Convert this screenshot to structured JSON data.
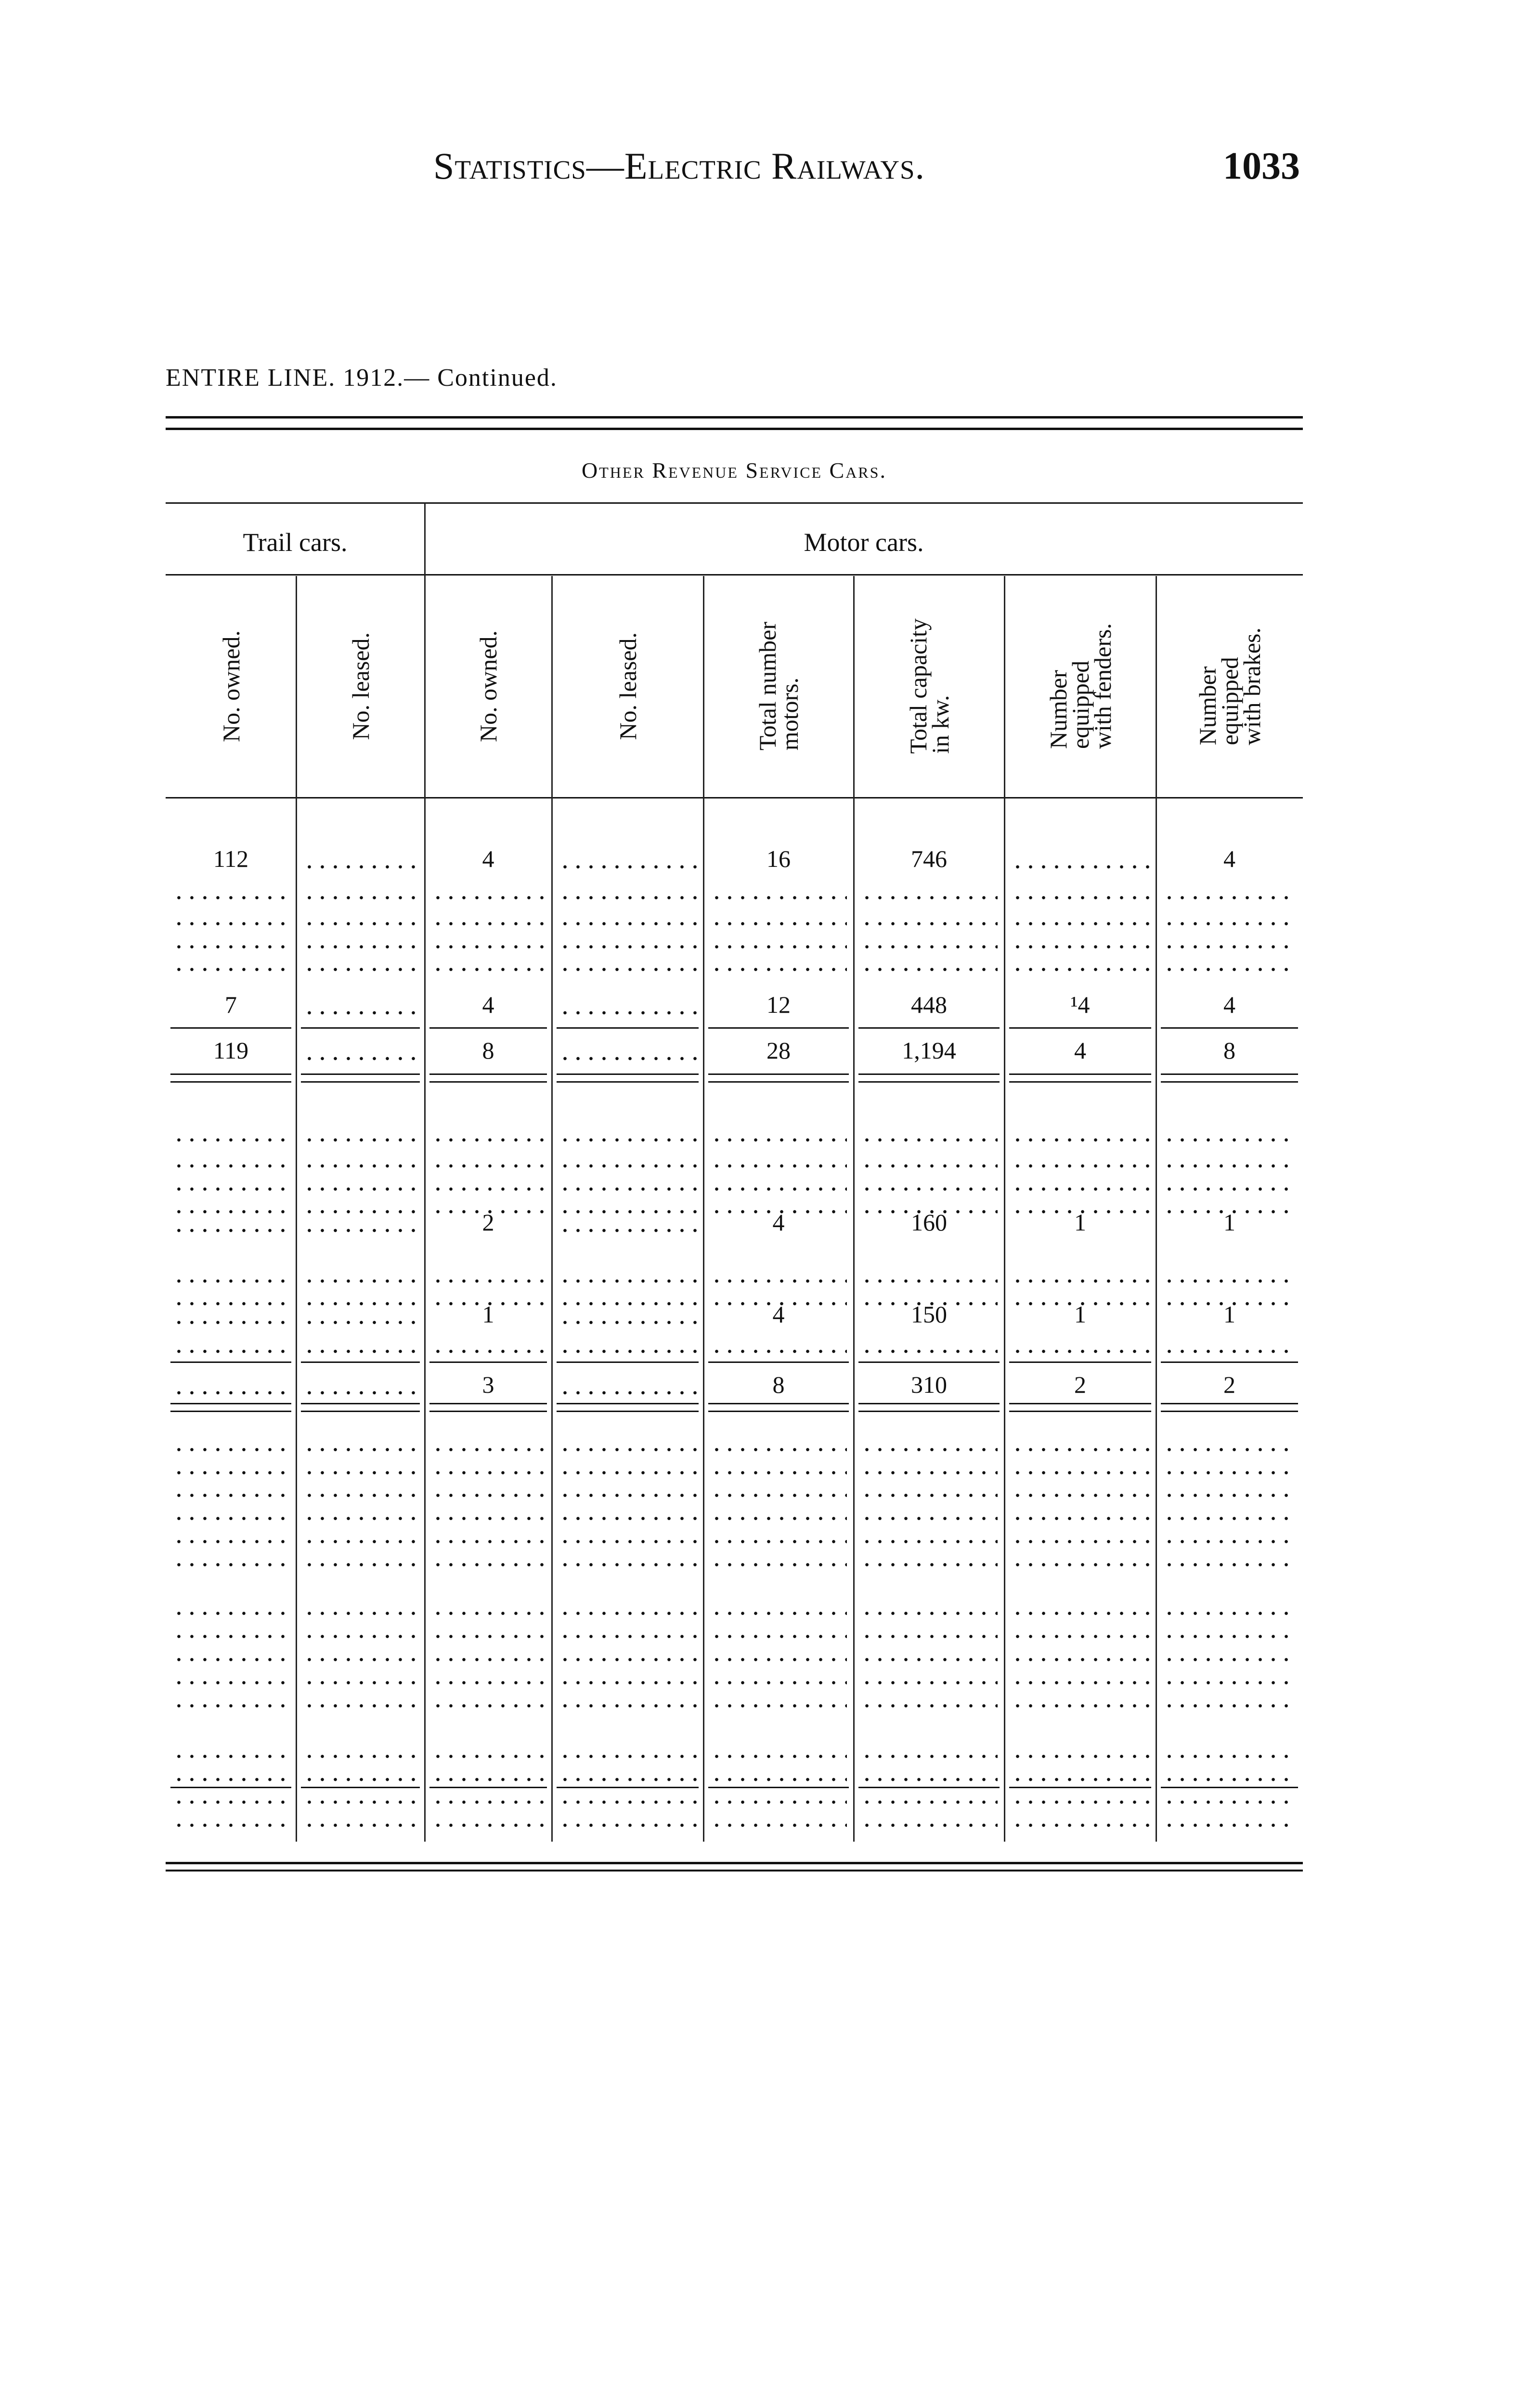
{
  "header": {
    "running_title": "Statistics—Electric Railways.",
    "page_number": "1033"
  },
  "subtitle": "ENTIRE LINE. 1912.— Continued.",
  "table": {
    "title": "Other Revenue Service Cars.",
    "groups": {
      "trail": "Trail cars.",
      "motor": "Motor cars."
    },
    "columns": [
      "No. owned.",
      "No. leased.",
      "No. owned.",
      "No. leased.",
      "Total number\nmotors.",
      "Total capacity\nin kw.",
      "Number\nequipped\nwith fenders.",
      "Number\nequipped\nwith brakes."
    ],
    "sections": [
      {
        "rows": [
          {
            "kind": "data",
            "cells": [
              "112",
              "",
              "4",
              "",
              "16",
              "746",
              "",
              "4"
            ]
          },
          {
            "kind": "blank",
            "cells": [
              "",
              "",
              "",
              "",
              "",
              "",
              "",
              ""
            ]
          },
          {
            "kind": "blank",
            "cells": [
              "",
              "",
              "",
              "",
              "",
              "",
              "",
              ""
            ]
          },
          {
            "kind": "blank",
            "cells": [
              "",
              "",
              "",
              "",
              "",
              "",
              "",
              ""
            ]
          },
          {
            "kind": "blank",
            "cells": [
              "",
              "",
              "",
              "",
              "",
              "",
              "",
              ""
            ]
          },
          {
            "kind": "data",
            "cells": [
              "7",
              "",
              "4",
              "",
              "12",
              "448",
              "¹4",
              "4"
            ]
          },
          {
            "kind": "total",
            "cells": [
              "119",
              "",
              "8",
              "",
              "28",
              "1,194",
              "4",
              "8"
            ]
          }
        ]
      },
      {
        "rows": [
          {
            "kind": "blank",
            "cells": [
              "",
              "",
              "",
              "",
              "",
              "",
              "",
              ""
            ]
          },
          {
            "kind": "blank",
            "cells": [
              "",
              "",
              "",
              "",
              "",
              "",
              "",
              ""
            ]
          },
          {
            "kind": "blank",
            "cells": [
              "",
              "",
              "",
              "",
              "",
              "",
              "",
              ""
            ]
          },
          {
            "kind": "blank",
            "cells": [
              "",
              "",
              "",
              "",
              "",
              "",
              "",
              ""
            ]
          },
          {
            "kind": "data",
            "cells": [
              "",
              "",
              "2",
              "",
              "4",
              "160",
              "1",
              "1"
            ]
          },
          {
            "kind": "blank",
            "cells": [
              "",
              "",
              "",
              "",
              "",
              "",
              "",
              ""
            ]
          },
          {
            "kind": "blank",
            "cells": [
              "",
              "",
              "",
              "",
              "",
              "",
              "",
              ""
            ]
          },
          {
            "kind": "data",
            "cells": [
              "",
              "",
              "1",
              "",
              "4",
              "150",
              "1",
              "1"
            ]
          },
          {
            "kind": "blank",
            "cells": [
              "",
              "",
              "",
              "",
              "",
              "",
              "",
              ""
            ]
          },
          {
            "kind": "total",
            "cells": [
              "",
              "",
              "3",
              "",
              "8",
              "310",
              "2",
              "2"
            ]
          }
        ]
      },
      {
        "rows": [
          {
            "kind": "blank",
            "cells": [
              "",
              "",
              "",
              "",
              "",
              "",
              "",
              ""
            ]
          },
          {
            "kind": "blank",
            "cells": [
              "",
              "",
              "",
              "",
              "",
              "",
              "",
              ""
            ]
          },
          {
            "kind": "blank",
            "cells": [
              "",
              "",
              "",
              "",
              "",
              "",
              "",
              ""
            ]
          },
          {
            "kind": "blank",
            "cells": [
              "",
              "",
              "",
              "",
              "",
              "",
              "",
              ""
            ]
          },
          {
            "kind": "blank",
            "cells": [
              "",
              "",
              "",
              "",
              "",
              "",
              "",
              ""
            ]
          },
          {
            "kind": "blank",
            "cells": [
              "",
              "",
              "",
              "",
              "",
              "",
              "",
              ""
            ]
          },
          {
            "kind": "blank",
            "cells": [
              "",
              "",
              "",
              "",
              "",
              "",
              "",
              ""
            ]
          },
          {
            "kind": "blank",
            "cells": [
              "",
              "",
              "",
              "",
              "",
              "",
              "",
              ""
            ]
          },
          {
            "kind": "blank",
            "cells": [
              "",
              "",
              "",
              "",
              "",
              "",
              "",
              ""
            ]
          },
          {
            "kind": "blank",
            "cells": [
              "",
              "",
              "",
              "",
              "",
              "",
              "",
              ""
            ]
          },
          {
            "kind": "blank",
            "cells": [
              "",
              "",
              "",
              "",
              "",
              "",
              "",
              ""
            ]
          },
          {
            "kind": "blank",
            "cells": [
              "",
              "",
              "",
              "",
              "",
              "",
              "",
              ""
            ]
          },
          {
            "kind": "blank",
            "cells": [
              "",
              "",
              "",
              "",
              "",
              "",
              "",
              ""
            ]
          },
          {
            "kind": "blank",
            "cells": [
              "",
              "",
              "",
              "",
              "",
              "",
              "",
              ""
            ]
          },
          {
            "kind": "total",
            "cells": [
              "",
              "",
              "",
              "",
              "",
              "",
              "",
              ""
            ]
          }
        ]
      }
    ]
  }
}
